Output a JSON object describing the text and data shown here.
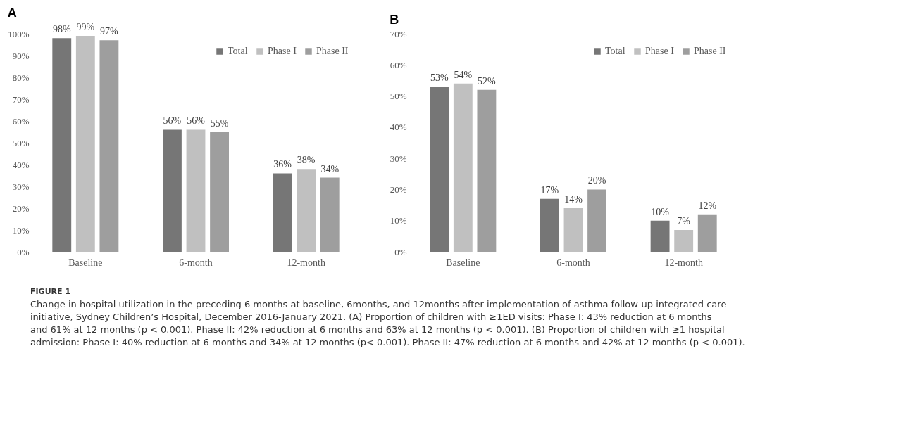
{
  "chart_data": [
    {
      "type": "bar",
      "title": "A",
      "categories": [
        "Baseline",
        "6-month",
        "12-month"
      ],
      "series": [
        {
          "name": "Total",
          "color": "#767676",
          "values": [
            98,
            56,
            36
          ]
        },
        {
          "name": "Phase I",
          "color": "#c0c0c0",
          "values": [
            99,
            56,
            38
          ]
        },
        {
          "name": "Phase II",
          "color": "#9e9e9e",
          "values": [
            97,
            55,
            34
          ]
        }
      ],
      "ylim": [
        0,
        100
      ],
      "yticks": [
        {
          "value": 0,
          "label": "0%"
        },
        {
          "value": 10,
          "label": "10%"
        },
        {
          "value": 20,
          "label": "20%"
        },
        {
          "value": 30,
          "label": "30%"
        },
        {
          "value": 40,
          "label": "40%"
        },
        {
          "value": 50,
          "label": "50%"
        },
        {
          "value": 60,
          "label": "60%"
        },
        {
          "value": 70,
          "label": "70%"
        },
        {
          "value": 80,
          "label": "80%"
        },
        {
          "value": 90,
          "label": "90%"
        },
        {
          "value": 100,
          "label": "100%"
        }
      ],
      "value_labels": [
        [
          "98%",
          "56%",
          "36%"
        ],
        [
          "99%",
          "56%",
          "38%"
        ],
        [
          "97%",
          "55%",
          "34%"
        ]
      ],
      "grid": false,
      "legend": "top right",
      "annotations": [
        "FIGURE 1",
        "Change in hospital utilization in the preceding 6 months at baseline, 6months, and 12months after implementation of asthma follow-up integrated care initiative, Sydney Children’s Hospital, December 2016-January 2021. (A) Proportion of children with ≥1ED visits: Phase I: 43% reduction at 6 months and 61% at 12 months (p < 0.001). Phase II: 42% reduction at 6 months and 63% at 12 months (p < 0.001). (B) Proportion of children with ≥1 hospital admission: Phase I: 40% reduction at 6 months and 34% at 12 months (p< 0.001). Phase II: 47% reduction at 6 months and 42% at 12 months (p < 0.001)."
      ]
    },
    {
      "type": "bar",
      "title": "B",
      "categories": [
        "Baseline",
        "6-month",
        "12-month"
      ],
      "series": [
        {
          "name": "Total",
          "color": "#767676",
          "values": [
            53,
            17,
            10
          ]
        },
        {
          "name": "Phase I",
          "color": "#c0c0c0",
          "values": [
            54,
            14,
            7
          ]
        },
        {
          "name": "Phase II",
          "color": "#9e9e9e",
          "values": [
            52,
            20,
            12
          ]
        }
      ],
      "ylim": [
        0,
        70
      ],
      "yticks": [
        {
          "value": 0,
          "label": "0%"
        },
        {
          "value": 10,
          "label": "10%"
        },
        {
          "value": 20,
          "label": "20%"
        },
        {
          "value": 30,
          "label": "30%"
        },
        {
          "value": 40,
          "label": "40%"
        },
        {
          "value": 50,
          "label": "50%"
        },
        {
          "value": 60,
          "label": "60%"
        },
        {
          "value": 70,
          "label": "70%"
        }
      ],
      "value_labels": [
        [
          "53%",
          "17%",
          "10%"
        ],
        [
          "54%",
          "14%",
          "7%"
        ],
        [
          "52%",
          "20%",
          "12%"
        ]
      ],
      "grid": false,
      "legend": "top right"
    }
  ]
}
